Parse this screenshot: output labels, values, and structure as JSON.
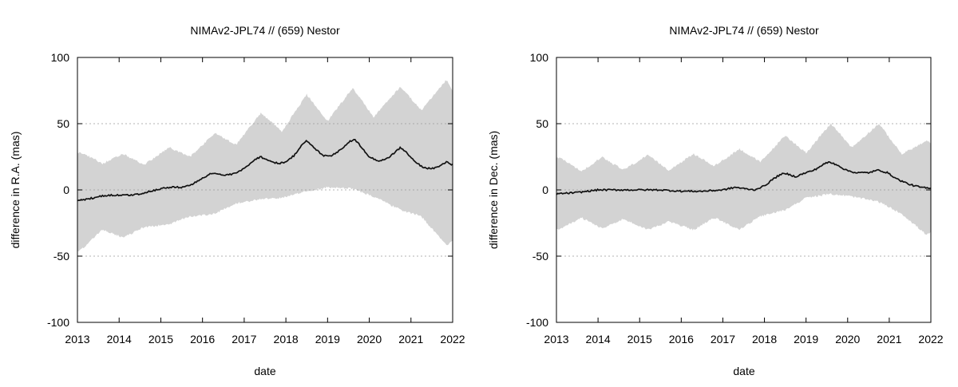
{
  "chart_data": [
    {
      "type": "line",
      "title": "NIMAv2-JPL74 // (659) Nestor",
      "xlabel": "date",
      "ylabel": "difference in R.A. (mas)",
      "xlim": [
        2013,
        2022
      ],
      "ylim": [
        -100,
        100
      ],
      "x_ticks": [
        "2013",
        "2014",
        "2015",
        "2016",
        "2017",
        "2018",
        "2019",
        "2020",
        "2021",
        "2022"
      ],
      "y_ticks": [
        "-100",
        "-50",
        "0",
        "50",
        "100"
      ],
      "grid": "dotted horizontal at y ticks",
      "colors": {
        "line": "#111111",
        "band": "#d3d3d3"
      },
      "series": [
        {
          "kind": "line",
          "x": [
            2013.0,
            2013.25,
            2013.5,
            2013.75,
            2014.0,
            2014.25,
            2014.5,
            2014.75,
            2015.0,
            2015.25,
            2015.5,
            2015.75,
            2016.0,
            2016.25,
            2016.5,
            2016.75,
            2017.0,
            2017.25,
            2017.4,
            2017.6,
            2017.8,
            2018.0,
            2018.2,
            2018.4,
            2018.5,
            2018.7,
            2018.9,
            2019.1,
            2019.3,
            2019.5,
            2019.65,
            2019.8,
            2020.0,
            2020.2,
            2020.4,
            2020.6,
            2020.75,
            2020.9,
            2021.1,
            2021.3,
            2021.5,
            2021.7,
            2021.85,
            2022.0
          ],
          "y": [
            -8,
            -7,
            -5,
            -4,
            -4,
            -4,
            -3,
            -1,
            1,
            2,
            2,
            4,
            9,
            13,
            11,
            12,
            16,
            23,
            25,
            22,
            20,
            21,
            26,
            35,
            37,
            31,
            26,
            26,
            30,
            36,
            38,
            33,
            25,
            22,
            23,
            28,
            32,
            28,
            21,
            17,
            16,
            18,
            21,
            19
          ]
        },
        {
          "kind": "band",
          "x": [
            2013.0,
            2013.1,
            2013.6,
            2014.1,
            2014.6,
            2015.2,
            2015.7,
            2016.3,
            2016.8,
            2017.4,
            2017.9,
            2018.5,
            2019.0,
            2019.6,
            2020.1,
            2020.75,
            2021.25,
            2021.85,
            2022.0
          ],
          "upper": [
            28,
            28,
            20,
            27,
            19,
            32,
            25,
            43,
            34,
            58,
            44,
            72,
            52,
            77,
            55,
            78,
            60,
            83,
            75
          ],
          "lower": [
            -46,
            -45,
            -30,
            -36,
            -28,
            -26,
            -20,
            -18,
            -10,
            -7,
            -6,
            -1,
            2,
            1,
            -5,
            -15,
            -20,
            -42,
            -38
          ]
        }
      ]
    },
    {
      "type": "line",
      "title": "NIMAv2-JPL74 // (659) Nestor",
      "xlabel": "date",
      "ylabel": "difference in Dec. (mas)",
      "xlim": [
        2013,
        2022
      ],
      "ylim": [
        -100,
        100
      ],
      "x_ticks": [
        "2013",
        "2014",
        "2015",
        "2016",
        "2017",
        "2018",
        "2019",
        "2020",
        "2021",
        "2022"
      ],
      "y_ticks": [
        "-100",
        "-50",
        "0",
        "50",
        "100"
      ],
      "grid": "dotted horizontal at y ticks",
      "colors": {
        "line": "#111111",
        "band": "#d3d3d3"
      },
      "series": [
        {
          "kind": "line",
          "x": [
            2013.0,
            2013.5,
            2014.0,
            2014.5,
            2015.0,
            2015.5,
            2016.0,
            2016.5,
            2017.0,
            2017.3,
            2017.5,
            2017.75,
            2018.0,
            2018.2,
            2018.4,
            2018.55,
            2018.75,
            2019.0,
            2019.2,
            2019.4,
            2019.55,
            2019.75,
            2019.95,
            2020.2,
            2020.5,
            2020.75,
            2020.95,
            2021.2,
            2021.5,
            2021.75,
            2022.0
          ],
          "y": [
            -3,
            -2,
            0,
            0,
            0,
            0,
            -1,
            -1,
            0,
            2,
            1,
            0,
            3,
            8,
            12,
            12,
            10,
            13,
            15,
            19,
            21,
            19,
            15,
            13,
            13,
            15,
            13,
            8,
            4,
            2,
            1
          ]
        },
        {
          "kind": "band",
          "x": [
            2013.0,
            2013.1,
            2013.6,
            2014.1,
            2014.6,
            2015.2,
            2015.7,
            2016.3,
            2016.8,
            2017.4,
            2017.9,
            2018.5,
            2019.0,
            2019.6,
            2020.1,
            2020.75,
            2021.3,
            2021.9,
            2022.0
          ],
          "upper": [
            24,
            24,
            14,
            25,
            15,
            26,
            15,
            27,
            18,
            31,
            21,
            41,
            28,
            50,
            32,
            50,
            27,
            37,
            35
          ],
          "lower": [
            -30,
            -29,
            -21,
            -29,
            -22,
            -30,
            -24,
            -30,
            -21,
            -30,
            -20,
            -15,
            -6,
            -3,
            -5,
            -9,
            -18,
            -34,
            -32
          ]
        }
      ]
    }
  ]
}
